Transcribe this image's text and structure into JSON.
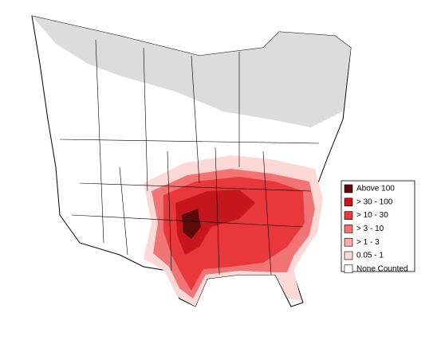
{
  "legend": {
    "items": [
      {
        "label": "Above 100",
        "color": "#5c0a0a"
      },
      {
        "label": "> 30 - 100",
        "color": "#c4161c"
      },
      {
        "label": "> 10 - 30",
        "color": "#e8383c"
      },
      {
        "label": "> 3 - 10",
        "color": "#f07474"
      },
      {
        "label": "> 1 - 3",
        "color": "#f7aaaa"
      },
      {
        "label": "0.05 - 1",
        "color": "#fcd9d6"
      },
      {
        "label": "None Counted",
        "color": "#ffffff"
      }
    ]
  }
}
